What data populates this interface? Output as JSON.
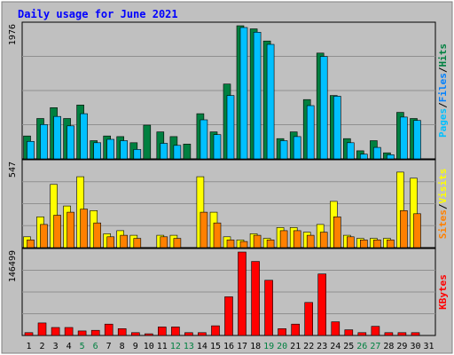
{
  "chart_data": {
    "type": "bar",
    "title": "Daily usage for June 2021",
    "categories": [
      "1",
      "2",
      "3",
      "4",
      "5",
      "6",
      "7",
      "8",
      "9",
      "10",
      "11",
      "12",
      "13",
      "14",
      "15",
      "16",
      "17",
      "18",
      "19",
      "20",
      "21",
      "22",
      "23",
      "24",
      "25",
      "26",
      "27",
      "28",
      "29",
      "30",
      "31"
    ],
    "weekend_days": [
      "5",
      "6",
      "12",
      "13",
      "19",
      "20",
      "26",
      "27"
    ],
    "panels": [
      {
        "name": "hits-files-pages",
        "ymax_label": "1976",
        "ylim": [
          0,
          1976
        ],
        "series": [
          {
            "name": "Hits",
            "color": "#008040",
            "values": [
              340,
              600,
              760,
              600,
              800,
              270,
              340,
              330,
              240,
              500,
              400,
              330,
              220,
              670,
              400,
              1110,
              1976,
              1930,
              1750,
              300,
              400,
              880,
              1570,
              940,
              300,
              120,
              270,
              90,
              690,
              600,
              0
            ]
          },
          {
            "name": "Files",
            "color": "#00c0ff",
            "values": [
              260,
              510,
              630,
              490,
              670,
              240,
              290,
              270,
              140,
              0,
              230,
              200,
              0,
              580,
              360,
              940,
              1950,
              1880,
              1700,
              270,
              330,
              790,
              1520,
              930,
              240,
              70,
              170,
              60,
              620,
              570,
              0
            ]
          },
          {
            "name": "Pages",
            "color": "#00c0ff",
            "values": [
              0,
              0,
              0,
              0,
              0,
              0,
              0,
              0,
              0,
              0,
              0,
              0,
              0,
              0,
              0,
              0,
              0,
              0,
              0,
              0,
              0,
              0,
              0,
              0,
              0,
              0,
              0,
              0,
              0,
              0,
              0
            ]
          }
        ],
        "side_labels": [
          "Pages",
          "/",
          "Files",
          "/",
          "Hits"
        ],
        "side_colors": [
          "#00c0ff",
          "#000000",
          "#0080ff",
          "#000000",
          "#008040"
        ]
      },
      {
        "name": "visits-sites",
        "ymax_label": "547",
        "ylim": [
          0,
          547
        ],
        "series": [
          {
            "name": "Visits",
            "color": "#ffff00",
            "values": [
              70,
              200,
              410,
              270,
              460,
              240,
              90,
              110,
              80,
              0,
              80,
              80,
              0,
              460,
              230,
              70,
              50,
              90,
              60,
              130,
              130,
              100,
              150,
              300,
              80,
              60,
              60,
              60,
              490,
              450,
              0
            ]
          },
          {
            "name": "Sites",
            "color": "#ff8000",
            "values": [
              50,
              150,
              210,
              230,
              250,
              160,
              70,
              80,
              60,
              0,
              70,
              60,
              0,
              230,
              160,
              50,
              40,
              80,
              50,
              110,
              110,
              80,
              100,
              200,
              70,
              50,
              50,
              50,
              240,
              220,
              0
            ]
          }
        ],
        "side_labels": [
          "Sites",
          "/",
          "Visits"
        ],
        "side_colors": [
          "#ff8000",
          "#000000",
          "#ffff00"
        ]
      },
      {
        "name": "kbytes",
        "ymax_label": "146499",
        "ylim": [
          0,
          146499
        ],
        "series": [
          {
            "name": "KBytes",
            "color": "#ff0000",
            "values": [
              5000,
              22000,
              14000,
              14000,
              8000,
              9000,
              20000,
              12000,
              5000,
              3000,
              15000,
              15000,
              5000,
              5000,
              17000,
              68000,
              146499,
              130000,
              97000,
              12000,
              20000,
              58000,
              108000,
              24000,
              10000,
              5000,
              16000,
              5000,
              5000,
              5000,
              0
            ]
          }
        ],
        "side_labels": [
          "KBytes"
        ],
        "side_colors": [
          "#ff0000"
        ]
      }
    ]
  },
  "colors": {
    "frame_bg": "#c0c0c0",
    "plot_bg": "#c0c0c0",
    "title": "#0000ff",
    "axis_text": "#000000",
    "weekend_text": "#008040",
    "grid": "#909090",
    "bar_outline": "#000000"
  }
}
